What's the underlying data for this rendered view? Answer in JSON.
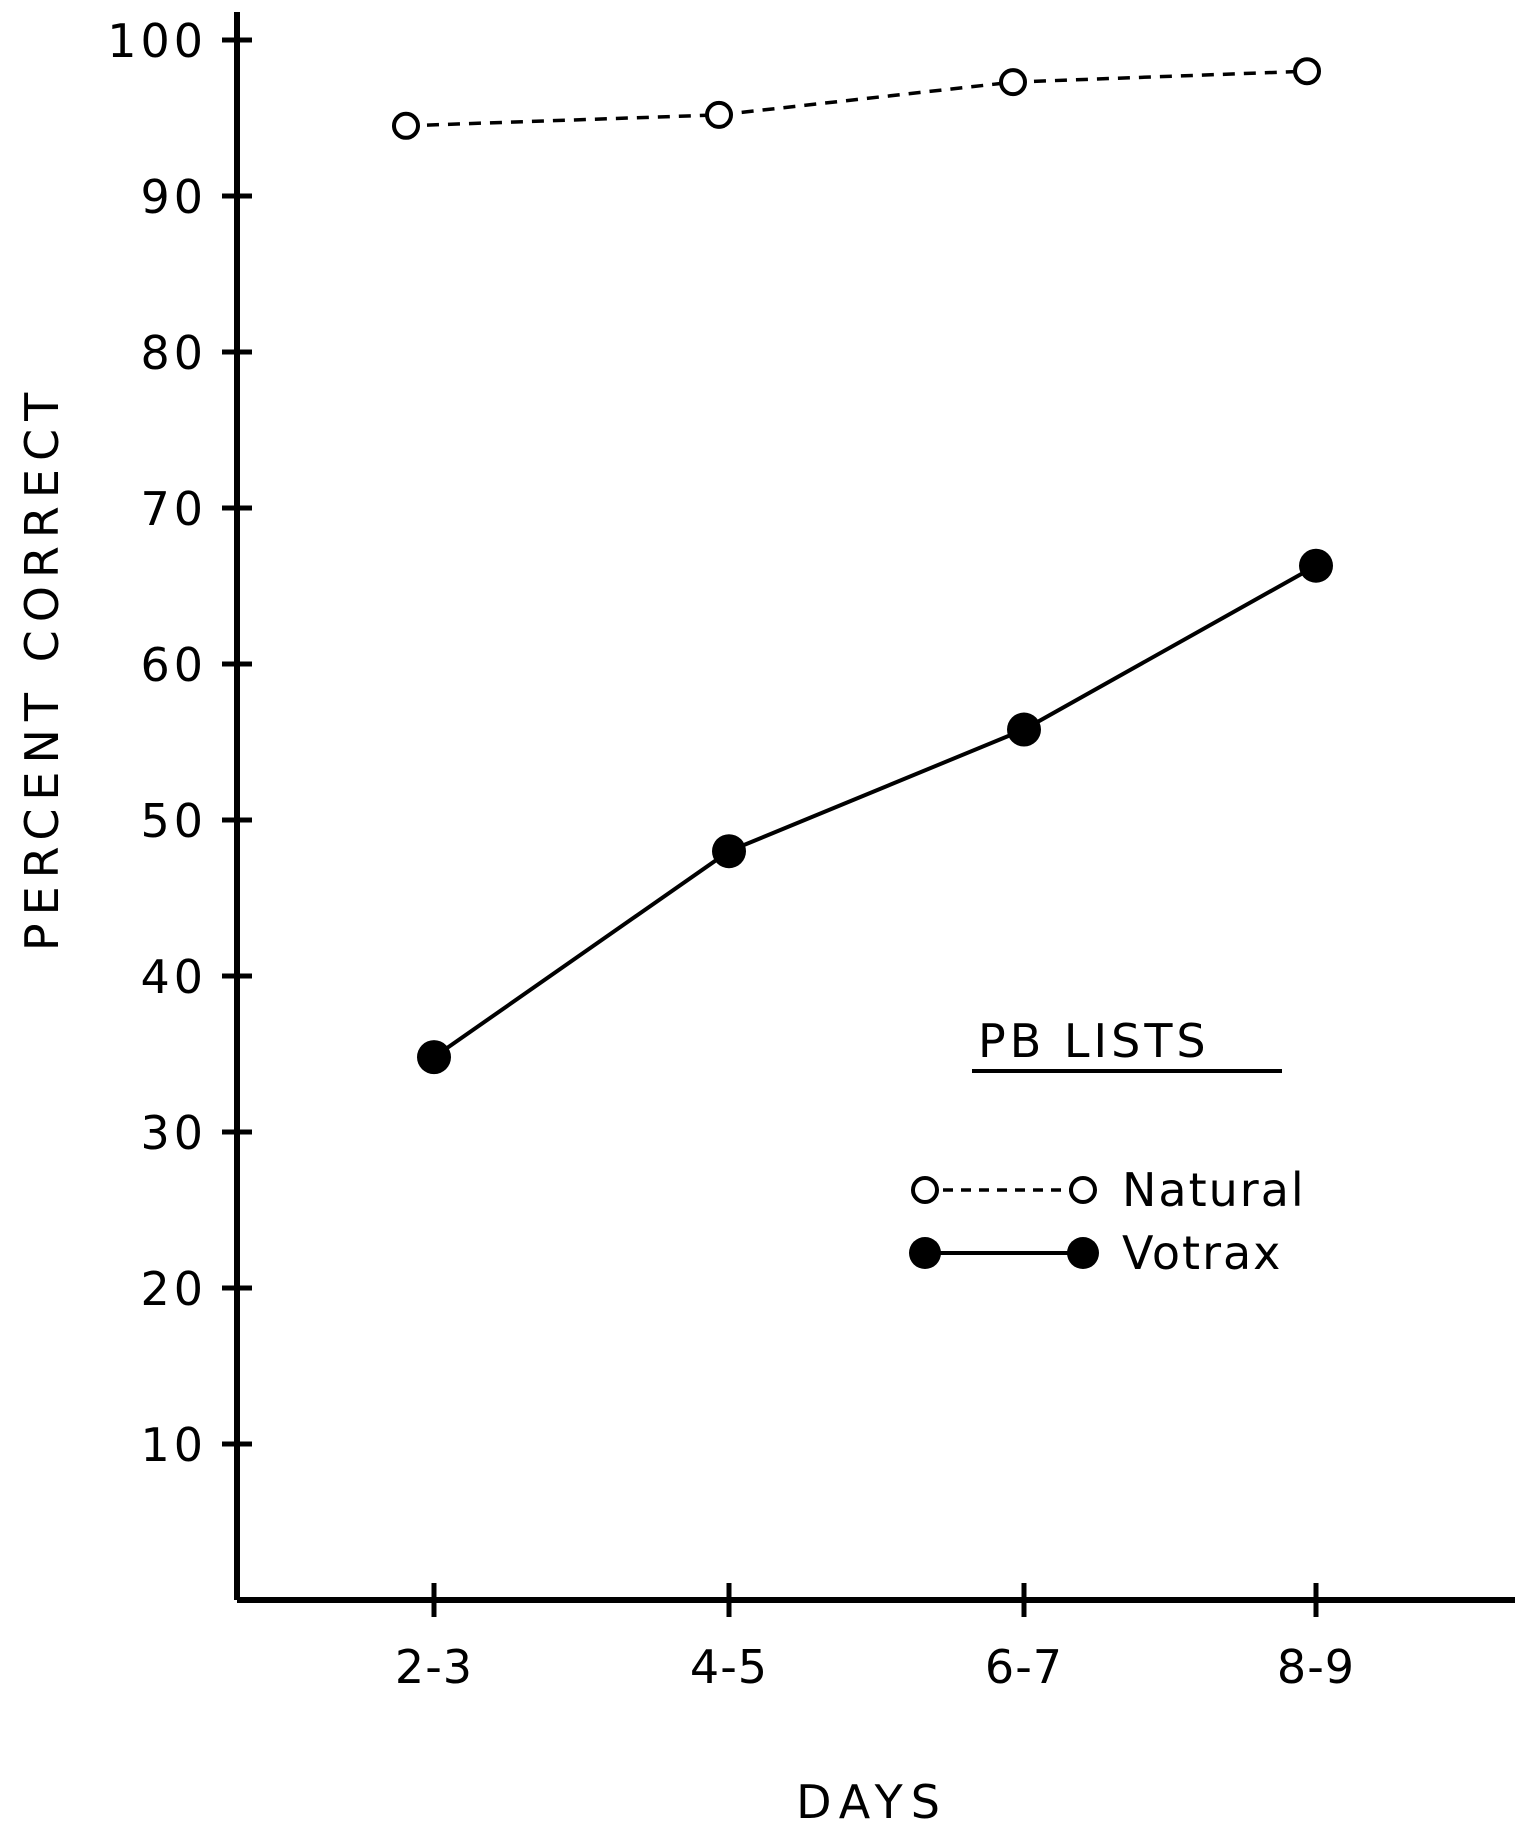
{
  "chart_data": {
    "type": "line",
    "title": "",
    "xlabel": "DAYS",
    "ylabel": "PERCENT CORRECT",
    "categories": [
      "2-3",
      "4-5",
      "6-7",
      "8-9"
    ],
    "ylim": [
      0,
      100
    ],
    "yticks": [
      "10",
      "20",
      "30",
      "40",
      "50",
      "60",
      "70",
      "80",
      "90",
      "100"
    ],
    "legend": {
      "title": "PB LISTS",
      "placement": "lower-right"
    },
    "series": [
      {
        "name": "Natural",
        "marker": "open-circle",
        "line": "dashed",
        "color": "#000000",
        "values": [
          94.5,
          95.2,
          97.3,
          98.0
        ]
      },
      {
        "name": "Votrax",
        "marker": "filled-circle",
        "line": "solid",
        "color": "#000000",
        "values": [
          34.8,
          48.0,
          55.8,
          66.3
        ]
      }
    ],
    "grid": false
  }
}
